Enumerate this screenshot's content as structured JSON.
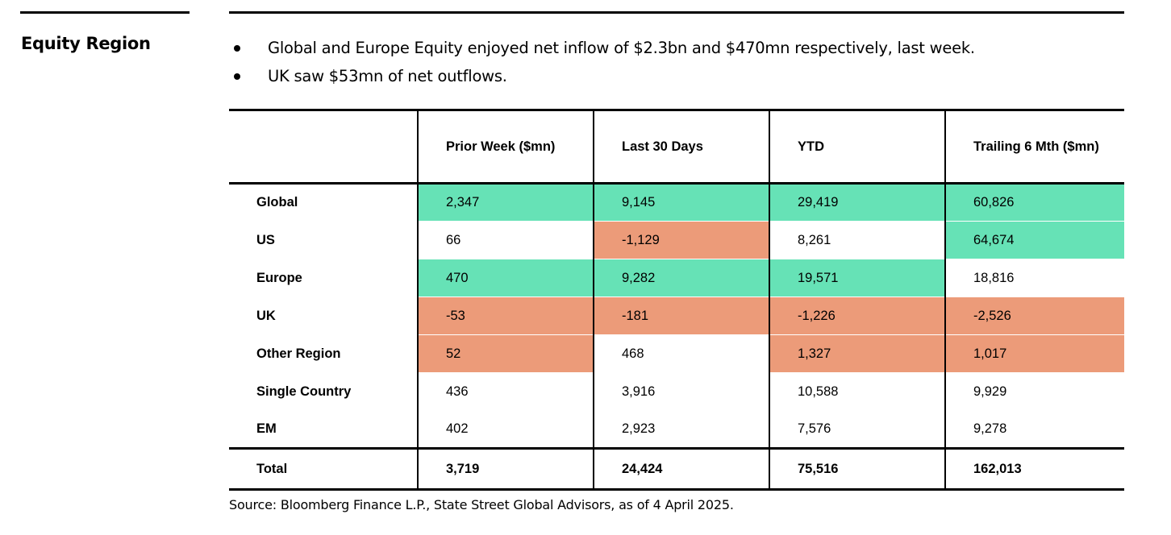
{
  "section_label": "Equity Region",
  "bullets": [
    "Global and Europe Equity enjoyed net inflow of $2.3bn and $470mn respectively, last week.",
    "UK saw $53mn of net outflows."
  ],
  "table": {
    "columns": [
      "",
      "Prior Week ($mn)",
      "Last 30 Days",
      "YTD",
      "Trailing 6 Mth ($mn)"
    ],
    "rows": [
      {
        "label": "Global",
        "values": [
          "2,347",
          "9,145",
          "29,419",
          "60,826"
        ],
        "status": [
          "pos",
          "pos",
          "pos",
          "pos"
        ]
      },
      {
        "label": "US",
        "values": [
          "66",
          "-1,129",
          "8,261",
          "64,674"
        ],
        "status": [
          "",
          "neg",
          "",
          "pos"
        ]
      },
      {
        "label": "Europe",
        "values": [
          "470",
          "9,282",
          "19,571",
          "18,816"
        ],
        "status": [
          "pos",
          "pos",
          "pos",
          ""
        ]
      },
      {
        "label": "UK",
        "values": [
          "-53",
          "-181",
          "-1,226",
          "-2,526"
        ],
        "status": [
          "neg",
          "neg",
          "neg",
          "neg"
        ]
      },
      {
        "label": "Other Region",
        "values": [
          "52",
          "468",
          "1,327",
          "1,017"
        ],
        "status": [
          "neg",
          "",
          "neg",
          "neg"
        ]
      },
      {
        "label": "Single Country",
        "values": [
          "436",
          "3,916",
          "10,588",
          "9,929"
        ],
        "status": [
          "",
          "",
          "",
          ""
        ]
      },
      {
        "label": "EM",
        "values": [
          "402",
          "2,923",
          "7,576",
          "9,278"
        ],
        "status": [
          "",
          "",
          "",
          ""
        ]
      },
      {
        "label": "Total",
        "values": [
          "3,719",
          "24,424",
          "75,516",
          "162,013"
        ],
        "status": [
          "",
          "",
          "",
          ""
        ]
      }
    ]
  },
  "colors": {
    "inflow": "#66e2b6",
    "outflow": "#ec9b79"
  },
  "source": "Source: Bloomberg Finance L.P., State Street Global Advisors, as of 4 April 2025."
}
